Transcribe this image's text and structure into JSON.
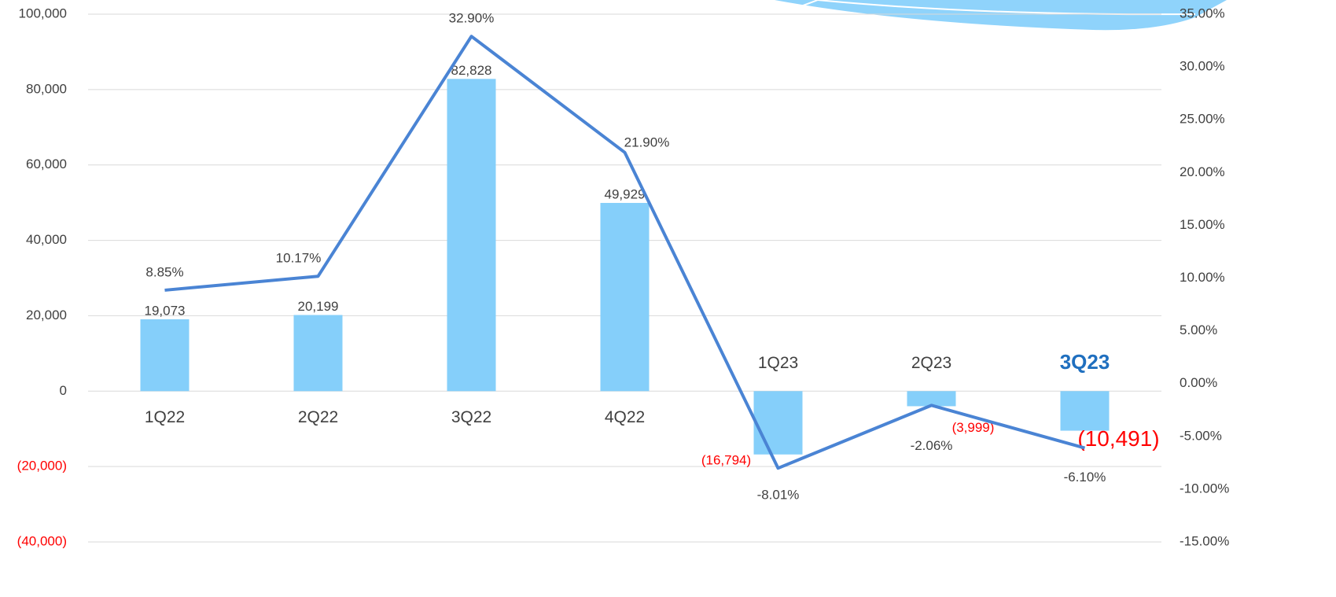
{
  "chart_data": {
    "type": "combo",
    "categories": [
      "1Q22",
      "2Q22",
      "3Q22",
      "4Q22",
      "1Q23",
      "2Q23",
      "3Q23"
    ],
    "series": [
      {
        "type": "bar",
        "color": "#85cffa",
        "values": [
          19073,
          20199,
          82828,
          49929,
          -16794,
          -3999,
          -10491
        ],
        "value_labels": [
          "19,073",
          "20,199",
          "82,828",
          "49,929",
          "(16,794)",
          "(3,999)",
          "(10,491)"
        ]
      },
      {
        "type": "line",
        "axis": "y2",
        "color": "#4a84d4",
        "values": [
          8.85,
          10.17,
          32.9,
          21.9,
          -8.01,
          -2.06,
          -6.1
        ],
        "value_labels": [
          "8.85%",
          "10.17%",
          "32.90%",
          "21.90%",
          "-8.01%",
          "-2.06%",
          "-6.10%"
        ]
      }
    ],
    "ylim": [
      -40000,
      100000
    ],
    "yticks": [
      {
        "value": -40000,
        "label": "(40,000)"
      },
      {
        "value": -20000,
        "label": "(20,000)"
      },
      0,
      {
        "value": 20000,
        "label": "20,000"
      },
      {
        "value": 40000,
        "label": "40,000"
      },
      {
        "value": 60000,
        "label": "60,000"
      },
      {
        "value": 80000,
        "label": "80,000"
      },
      {
        "value": 100000,
        "label": "100,000"
      }
    ],
    "y2lim": [
      -15,
      35
    ],
    "y2ticks": [
      {
        "value": -15,
        "label": "-15.00%"
      },
      {
        "value": -10,
        "label": "-10.00%"
      },
      {
        "value": -5,
        "label": "-5.00%"
      },
      {
        "value": 0,
        "label": "0.00%"
      },
      {
        "value": 5,
        "label": "5.00%"
      },
      {
        "value": 10,
        "label": "10.00%"
      },
      {
        "value": 15,
        "label": "15.00%"
      },
      {
        "value": 20,
        "label": "20.00%"
      },
      {
        "value": 25,
        "label": "25.00%"
      },
      {
        "value": 30,
        "label": "30.00%"
      },
      {
        "value": 35,
        "label": "35.00%"
      }
    ],
    "grid": true
  }
}
